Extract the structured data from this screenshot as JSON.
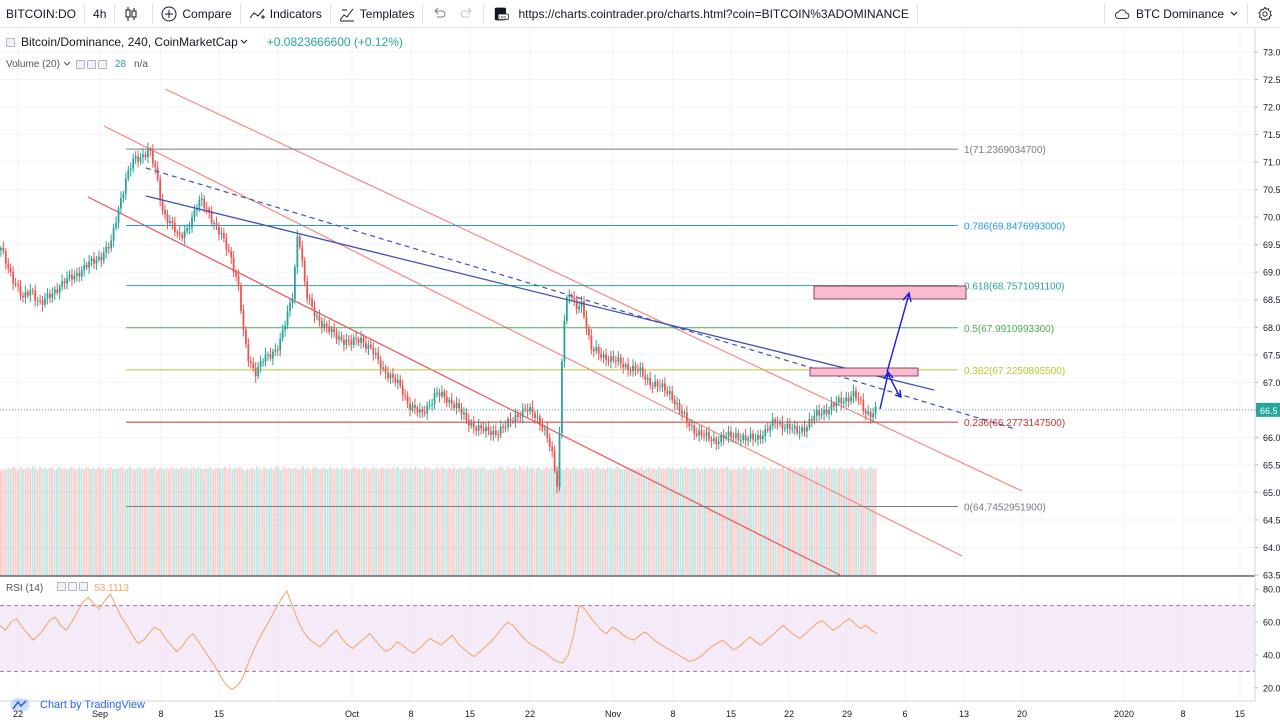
{
  "toolbar": {
    "symbol": "BITCOIN:DO",
    "interval": "4h",
    "compare_label": "Compare",
    "indicators_label": "Indicators",
    "templates_label": "Templates",
    "url": "https://charts.cointrader.pro/charts.html?coin=BITCOIN%3ADOMINANCE",
    "watchlist_label": "BTC Dominance"
  },
  "legend": {
    "title": "Bitcoin/Dominance, 240, CoinMarketCap",
    "change": "+0.0823666600 (+0.12%)",
    "volume_label": "Volume (20)",
    "volume_value": "28",
    "volume_na": "n/a",
    "rsi_label": "RSI (14)",
    "rsi_value": "53.1113"
  },
  "branding": {
    "text": "Chart by TradingView"
  },
  "colors": {
    "up": "#26a69a",
    "down": "#ef5350",
    "channel": "#f28b82",
    "trendline": "#3f51b5",
    "rsi_line": "#f4a261",
    "rsi_band": "#f3e5f5"
  },
  "chart_data": {
    "type": "candlestick",
    "y_axis": {
      "min": 63.5,
      "max": 73.0,
      "ticks": [
        "73.0",
        "72.5",
        "72.0",
        "71.5",
        "71.0",
        "70.5",
        "70.0",
        "69.5",
        "69.0",
        "68.5",
        "68.0",
        "67.5",
        "67.0",
        "66.5",
        "66.0",
        "65.5",
        "65.0",
        "64.5",
        "64.0",
        "63.5"
      ],
      "current_price": "66.5"
    },
    "x_axis": {
      "ticks": [
        "22",
        "Sep",
        "8",
        "15",
        "Oct",
        "8",
        "15",
        "22",
        "Nov",
        "8",
        "15",
        "22",
        "29",
        "6",
        "13",
        "20",
        "2020",
        "8",
        "15"
      ]
    },
    "close_path": [
      [
        0,
        69.4
      ],
      [
        12,
        68.9
      ],
      [
        22,
        68.5
      ],
      [
        30,
        68.7
      ],
      [
        40,
        68.4
      ],
      [
        55,
        68.7
      ],
      [
        70,
        68.9
      ],
      [
        85,
        69.1
      ],
      [
        100,
        69.3
      ],
      [
        110,
        69.5
      ],
      [
        118,
        70.2
      ],
      [
        125,
        70.7
      ],
      [
        132,
        71.0
      ],
      [
        140,
        71.1
      ],
      [
        148,
        71.25
      ],
      [
        155,
        70.8
      ],
      [
        162,
        70.1
      ],
      [
        170,
        69.9
      ],
      [
        178,
        69.6
      ],
      [
        186,
        69.8
      ],
      [
        194,
        70.1
      ],
      [
        200,
        70.3
      ],
      [
        208,
        70.1
      ],
      [
        215,
        69.8
      ],
      [
        222,
        69.6
      ],
      [
        230,
        69.3
      ],
      [
        238,
        68.7
      ],
      [
        243,
        67.8
      ],
      [
        248,
        67.4
      ],
      [
        255,
        67.2
      ],
      [
        262,
        67.4
      ],
      [
        270,
        67.5
      ],
      [
        278,
        67.7
      ],
      [
        285,
        68.1
      ],
      [
        292,
        68.6
      ],
      [
        297,
        69.8
      ],
      [
        300,
        69.4
      ],
      [
        305,
        68.6
      ],
      [
        312,
        68.3
      ],
      [
        320,
        68.1
      ],
      [
        330,
        67.9
      ],
      [
        340,
        67.8
      ],
      [
        350,
        67.7
      ],
      [
        360,
        67.8
      ],
      [
        370,
        67.6
      ],
      [
        380,
        67.3
      ],
      [
        390,
        67.1
      ],
      [
        400,
        66.9
      ],
      [
        408,
        66.6
      ],
      [
        415,
        66.5
      ],
      [
        420,
        66.4
      ],
      [
        428,
        66.6
      ],
      [
        435,
        66.8
      ],
      [
        445,
        66.7
      ],
      [
        455,
        66.6
      ],
      [
        465,
        66.3
      ],
      [
        475,
        66.2
      ],
      [
        485,
        66.1
      ],
      [
        495,
        66.1
      ],
      [
        505,
        66.2
      ],
      [
        515,
        66.4
      ],
      [
        525,
        66.5
      ],
      [
        535,
        66.4
      ],
      [
        542,
        66.2
      ],
      [
        548,
        65.9
      ],
      [
        552,
        65.6
      ],
      [
        556,
        65.1
      ],
      [
        559,
        66.2
      ],
      [
        562,
        68.0
      ],
      [
        566,
        68.5
      ],
      [
        570,
        68.6
      ],
      [
        575,
        68.3
      ],
      [
        580,
        68.5
      ],
      [
        585,
        68.1
      ],
      [
        590,
        67.6
      ],
      [
        600,
        67.5
      ],
      [
        612,
        67.4
      ],
      [
        625,
        67.3
      ],
      [
        638,
        67.2
      ],
      [
        650,
        67.0
      ],
      [
        660,
        66.9
      ],
      [
        670,
        66.8
      ],
      [
        678,
        66.5
      ],
      [
        686,
        66.3
      ],
      [
        695,
        66.1
      ],
      [
        705,
        66.0
      ],
      [
        715,
        65.95
      ],
      [
        725,
        66.0
      ],
      [
        735,
        66.05
      ],
      [
        745,
        65.95
      ],
      [
        755,
        66.0
      ],
      [
        765,
        66.1
      ],
      [
        775,
        66.3
      ],
      [
        785,
        66.2
      ],
      [
        795,
        66.1
      ],
      [
        805,
        66.2
      ],
      [
        815,
        66.4
      ],
      [
        825,
        66.5
      ],
      [
        835,
        66.6
      ],
      [
        845,
        66.7
      ],
      [
        852,
        66.8
      ],
      [
        858,
        66.65
      ],
      [
        865,
        66.45
      ],
      [
        872,
        66.45
      ],
      [
        877,
        66.55
      ]
    ],
    "volume_levels": [
      0.55,
      0.62,
      0.58,
      0.66,
      0.6,
      0.71,
      0.64,
      0.57,
      0.69,
      0.61,
      0.63,
      0.67,
      0.59,
      0.72,
      0.65,
      0.58,
      0.7,
      0.62,
      0.66,
      0.6,
      0.64,
      0.68,
      0.57,
      0.63,
      0.71,
      0.61,
      0.66,
      0.59,
      0.65,
      0.69,
      0.62,
      0.58,
      0.67,
      0.63,
      0.6,
      0.7,
      0.64,
      0.61,
      0.66,
      0.59,
      0.68,
      0.62,
      0.65,
      0.57,
      0.63,
      0.69,
      0.61,
      0.64,
      0.6,
      0.67,
      0.66,
      0.58,
      0.62,
      0.7,
      0.63,
      0.59,
      0.65,
      0.68,
      0.61,
      0.64,
      0.6,
      0.66,
      0.62,
      0.69,
      0.57,
      0.63,
      0.67,
      0.61,
      0.65,
      0.59,
      0.7,
      0.62,
      0.64,
      0.6,
      0.68,
      0.63,
      0.66,
      0.58,
      0.62,
      0.67,
      0.61,
      0.69,
      0.64,
      0.6,
      0.65,
      0.62,
      0.68,
      0.59,
      0.63,
      0.66,
      0.61,
      0.64,
      0.7,
      0.62,
      0.67,
      0.6,
      0.65,
      0.63,
      0.69,
      0.61
    ],
    "fibonacci": [
      {
        "level": "1",
        "price": 71.23690347,
        "label": "1(71.2369034700)",
        "color": "#787b86"
      },
      {
        "level": "0.786",
        "price": 69.8476993,
        "label": "0.786(69.8476993000)",
        "color": "#2196f3"
      },
      {
        "level": "0.618",
        "price": 68.75710911,
        "label": "0.618(68.7571091100)",
        "color": "#26a69a"
      },
      {
        "level": "0.5",
        "price": 67.99109933,
        "label": "0.5(67.9910993300)",
        "color": "#4caf50"
      },
      {
        "level": "0.382",
        "price": 67.22508955,
        "label": "0.382(67.2250895500)",
        "color": "#b8c832"
      },
      {
        "level": "0.236",
        "price": 66.27731475,
        "label": "0.236(66.2773147500)",
        "color": "#d32f2f"
      },
      {
        "level": "0",
        "price": 64.74529519,
        "label": "0(64.7452951900)",
        "color": "#787b86"
      }
    ],
    "rsi": {
      "ticks": [
        "80.0",
        "60.0",
        "40.0",
        "20.0"
      ],
      "upper": 70,
      "lower": 30,
      "min": 15,
      "max": 85,
      "values": [
        58,
        55,
        60,
        62,
        57,
        53,
        49,
        52,
        56,
        61,
        63,
        58,
        55,
        60,
        66,
        72,
        75,
        71,
        68,
        73,
        77,
        70,
        63,
        58,
        52,
        47,
        49,
        53,
        57,
        55,
        50,
        46,
        42,
        45,
        50,
        53,
        48,
        43,
        38,
        33,
        27,
        22,
        19,
        21,
        26,
        35,
        43,
        50,
        56,
        62,
        68,
        74,
        79,
        70,
        61,
        54,
        50,
        47,
        45,
        48,
        52,
        55,
        50,
        46,
        44,
        47,
        50,
        53,
        49,
        45,
        42,
        44,
        48,
        46,
        43,
        41,
        44,
        47,
        50,
        48,
        46,
        49,
        52,
        47,
        44,
        41,
        39,
        42,
        45,
        48,
        52,
        56,
        60,
        58,
        54,
        50,
        47,
        45,
        43,
        41,
        38,
        36,
        35,
        40,
        52,
        70,
        68,
        63,
        59,
        55,
        53,
        57,
        55,
        52,
        50,
        49,
        52,
        54,
        51,
        48,
        46,
        44,
        42,
        40,
        38,
        36,
        37,
        39,
        42,
        45,
        47,
        49,
        46,
        43,
        45,
        48,
        51,
        48,
        46,
        49,
        52,
        55,
        58,
        55,
        52,
        50,
        53,
        56,
        59,
        61,
        58,
        55,
        57,
        60,
        62,
        59,
        56,
        58,
        55,
        53
      ]
    }
  }
}
